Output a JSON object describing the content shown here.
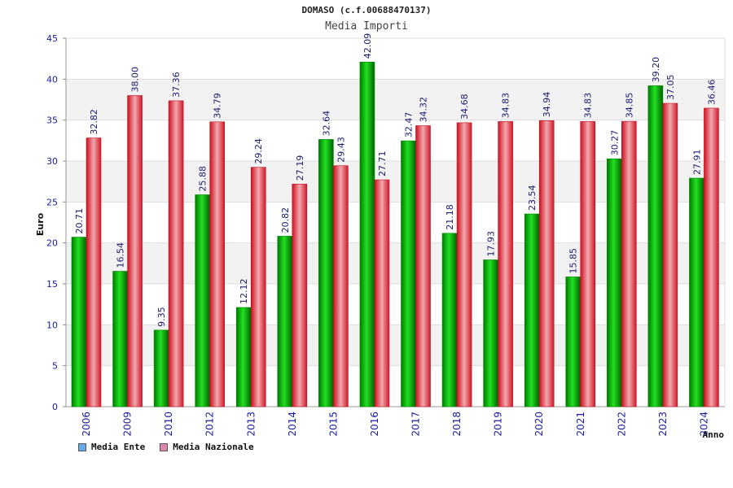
{
  "chart_data": {
    "type": "bar",
    "title": "DOMASO (c.f.00688470137)",
    "subtitle": "Media Importi",
    "xlabel": "Anno",
    "ylabel": "Euro",
    "ylim": [
      0,
      45
    ],
    "yticks": [
      0,
      5,
      10,
      15,
      20,
      25,
      30,
      35,
      40,
      45
    ],
    "grid": true,
    "legend_position": "bottom-left",
    "categories": [
      "2006",
      "2009",
      "2010",
      "2012",
      "2013",
      "2014",
      "2015",
      "2016",
      "2017",
      "2018",
      "2019",
      "2020",
      "2021",
      "2022",
      "2023",
      "2024"
    ],
    "series": [
      {
        "name": "Media Ente",
        "color": "#00b000",
        "legend_color": "#66aaee",
        "values": [
          20.71,
          16.54,
          9.35,
          25.88,
          12.12,
          20.82,
          32.64,
          42.09,
          32.47,
          21.18,
          17.93,
          23.54,
          15.85,
          30.27,
          39.2,
          27.91
        ],
        "labels": [
          "20.71",
          "16.54",
          "9.35",
          "25.88",
          "12.12",
          "20.82",
          "32.64",
          "42.09",
          "32.47",
          "21.18",
          "17.93",
          "23.54",
          "15.85",
          "30.27",
          "39.20",
          "27.91"
        ]
      },
      {
        "name": "Media Nazionale",
        "color": "#e8202c",
        "legend_color": "#dd88aa",
        "values": [
          32.82,
          38.0,
          37.36,
          34.79,
          29.24,
          27.19,
          29.43,
          27.71,
          34.32,
          34.68,
          34.83,
          34.94,
          34.83,
          34.85,
          37.05,
          36.46
        ],
        "labels": [
          "32.82",
          "38.00",
          "37.36",
          "34.79",
          "29.24",
          "27.19",
          "29.43",
          "27.71",
          "34.32",
          "34.68",
          "34.83",
          "34.94",
          "34.83",
          "34.85",
          "37.05",
          "36.46"
        ]
      }
    ]
  }
}
